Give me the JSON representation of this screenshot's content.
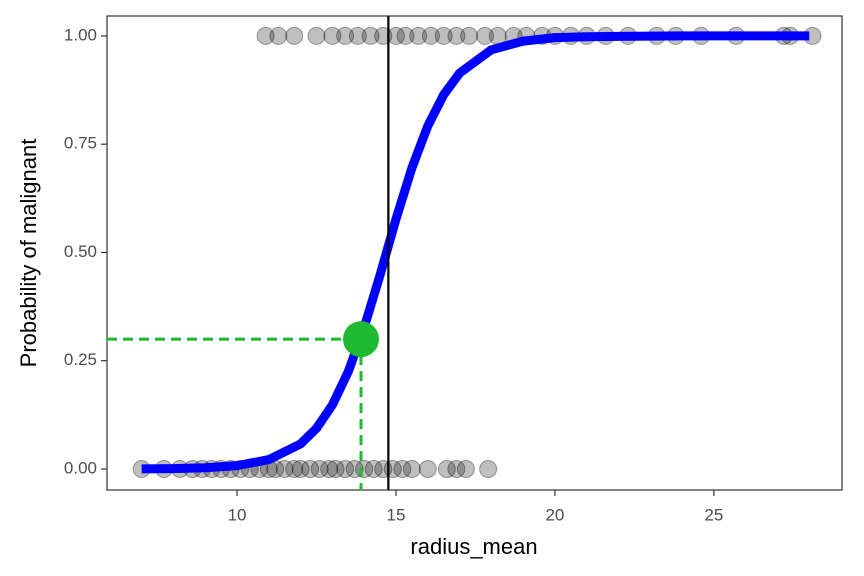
{
  "chart_data": {
    "type": "scatter",
    "x_label": "radius_mean",
    "y_label": "Probability of malignant",
    "xlim": [
      5.91,
      29.03
    ],
    "ylim": [
      -0.0485,
      1.046
    ],
    "xticks": [
      10,
      15,
      20,
      25
    ],
    "yticks": [
      {
        "value": 0,
        "label": "0.00"
      },
      {
        "value": 0.25,
        "label": "0.25"
      },
      {
        "value": 0.5,
        "label": "0.50"
      },
      {
        "value": 0.75,
        "label": "0.75"
      },
      {
        "value": 1,
        "label": "1.00"
      }
    ],
    "points": {
      "color": "#000000",
      "x": [
        7.0,
        7.7,
        8.2,
        8.6,
        8.9,
        9.2,
        9.5,
        9.8,
        10.1,
        10.4,
        10.7,
        11.0,
        11.2,
        11.5,
        11.8,
        12.0,
        12.3,
        12.6,
        12.9,
        13.1,
        13.4,
        13.7,
        14.0,
        14.3,
        14.6,
        14.9,
        15.2,
        15.5,
        16.0,
        16.6,
        16.9,
        17.2,
        17.9,
        10.9,
        11.3,
        11.8,
        12.5,
        13.0,
        13.4,
        13.8,
        14.2,
        14.6,
        15.0,
        15.3,
        15.7,
        16.1,
        16.5,
        16.9,
        17.3,
        17.8,
        18.2,
        18.7,
        19.1,
        19.6,
        20.0,
        20.5,
        21.0,
        21.6,
        22.3,
        23.2,
        23.8,
        24.6,
        25.7,
        27.2,
        27.4,
        28.1
      ],
      "y": [
        0,
        0,
        0,
        0,
        0,
        0,
        0,
        0,
        0,
        0,
        0,
        0,
        0,
        0,
        0,
        0,
        0,
        0,
        0,
        0,
        0,
        0,
        0,
        0,
        0,
        0,
        0,
        0,
        0,
        0,
        0,
        0,
        0,
        1,
        1,
        1,
        1,
        1,
        1,
        1,
        1,
        1,
        1,
        1,
        1,
        1,
        1,
        1,
        1,
        1,
        1,
        1,
        1,
        1,
        1,
        1,
        1,
        1,
        1,
        1,
        1,
        1,
        1,
        1,
        1,
        1
      ]
    },
    "curve": {
      "color": "#0000ff",
      "x": [
        7,
        8,
        9,
        10,
        11,
        12,
        12.5,
        13,
        13.5,
        14,
        14.5,
        15,
        15.5,
        16,
        16.5,
        17,
        18,
        19,
        20,
        21,
        22,
        24,
        26,
        28
      ],
      "y": [
        0.0004,
        0.001,
        0.0028,
        0.0078,
        0.0217,
        0.058,
        0.094,
        0.148,
        0.225,
        0.327,
        0.448,
        0.577,
        0.695,
        0.792,
        0.864,
        0.914,
        0.968,
        0.988,
        0.996,
        0.998,
        0.999,
        1,
        1,
        1
      ]
    },
    "threshold_x": 14.76,
    "threshold_color": "#000000",
    "highlight": {
      "x": 13.9,
      "y": 0.3,
      "color": "#1fba32"
    }
  }
}
